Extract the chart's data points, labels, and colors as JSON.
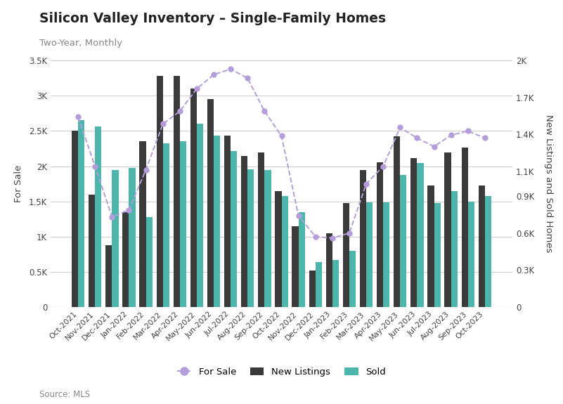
{
  "months": [
    "Oct-2021",
    "Nov-2021",
    "Dec-2021",
    "Jan-2022",
    "Feb-2022",
    "Mar-2022",
    "Apr-2022",
    "May-2022",
    "Jun-2022",
    "Jul-2022",
    "Aug-2022",
    "Sep-2022",
    "Oct-2022",
    "Nov-2022",
    "Dec-2022",
    "Jan-2023",
    "Feb-2023",
    "Mar-2023",
    "Apr-2023",
    "May-2023",
    "Jun-2023",
    "Jul-2023",
    "Aug-2023",
    "Sep-2023",
    "Oct-2023"
  ],
  "for_sale": [
    2700,
    2000,
    1280,
    1380,
    1950,
    2600,
    2780,
    3100,
    3300,
    3380,
    3250,
    2780,
    2430,
    1300,
    1000,
    980,
    1050,
    1750,
    2000,
    2550,
    2400,
    2280,
    2440,
    2500,
    2400
  ],
  "new_listings": [
    2500,
    1600,
    875,
    1350,
    2350,
    3280,
    3280,
    3100,
    2950,
    2430,
    2150,
    2200,
    1650,
    1150,
    520,
    1050,
    1480,
    1950,
    2060,
    2420,
    2120,
    1730,
    2200,
    2270,
    1730
  ],
  "sold": [
    2650,
    2560,
    1950,
    1980,
    1280,
    2330,
    2350,
    2600,
    2430,
    2220,
    1960,
    1950,
    1580,
    1350,
    640,
    670,
    800,
    1490,
    1490,
    1880,
    2050,
    1480,
    1650,
    1500,
    1580
  ],
  "title": "Silicon Valley Inventory – Single-Family Homes",
  "subtitle": "Two-Year, Monthly",
  "ylabel_left": "For Sale",
  "ylabel_right": "New Listings and Sold Homes",
  "source": "Source: MLS",
  "for_sale_color": "#b39ddb",
  "new_listings_color": "#3a3a3a",
  "sold_color": "#4db6ac",
  "background_color": "#ffffff",
  "ylim_main": [
    0,
    3500
  ],
  "yticks_main": [
    0,
    500,
    1000,
    1500,
    2000,
    2500,
    3000,
    3500
  ],
  "ytick_labels_main": [
    "0",
    "0.5K",
    "1K",
    "1.5K",
    "2K",
    "2.5K",
    "3K",
    "3.5K"
  ],
  "ylim_right": [
    0,
    2000
  ],
  "yticks_right": [
    0,
    300,
    600,
    900,
    1100,
    1400,
    1700,
    2000
  ],
  "ytick_labels_right": [
    "0",
    "0.3K",
    "0.6K",
    "0.9K",
    "1.1K",
    "1.4K",
    "1.7K",
    "2K"
  ]
}
